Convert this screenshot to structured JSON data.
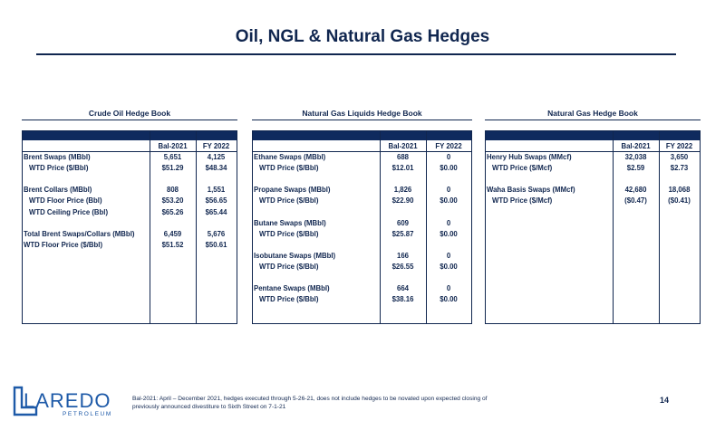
{
  "title": "Oil, NGL & Natural Gas Hedges",
  "columns": [
    "Bal-2021",
    "FY 2022"
  ],
  "books": [
    {
      "title": "Crude Oil Hedge Book",
      "rows": [
        {
          "label": "Brent Swaps (MBbl)",
          "indent": false,
          "v1": "5,651",
          "v2": "4,125",
          "slot": 0
        },
        {
          "label": "WTD Price ($/Bbl)",
          "indent": true,
          "v1": "$51.29",
          "v2": "$48.34",
          "slot": 1
        },
        {
          "label": "Brent Collars (MBbl)",
          "indent": false,
          "v1": "808",
          "v2": "1,551",
          "slot": 3
        },
        {
          "label": "WTD Floor Price (Bbl)",
          "indent": true,
          "v1": "$53.20",
          "v2": "$56.65",
          "slot": 4
        },
        {
          "label": "WTD Ceiling Price (Bbl)",
          "indent": true,
          "v1": "$65.26",
          "v2": "$65.44",
          "slot": 5
        },
        {
          "label": "Total Brent Swaps/Collars (MBbl)",
          "indent": false,
          "v1": "6,459",
          "v2": "5,676",
          "slot": 7
        },
        {
          "label": "WTD Floor Price ($/Bbl)",
          "indent": false,
          "v1": "$51.52",
          "v2": "$50.61",
          "slot": 8
        }
      ]
    },
    {
      "title": "Natural Gas Liquids Hedge Book",
      "rows": [
        {
          "label": "Ethane Swaps (MBbl)",
          "indent": false,
          "v1": "688",
          "v2": "0",
          "slot": 0
        },
        {
          "label": "WTD Price ($/Bbl)",
          "indent": true,
          "v1": "$12.01",
          "v2": "$0.00",
          "slot": 1
        },
        {
          "label": "Propane Swaps (MBbl)",
          "indent": false,
          "v1": "1,826",
          "v2": "0",
          "slot": 3
        },
        {
          "label": "WTD Price ($/Bbl)",
          "indent": true,
          "v1": "$22.90",
          "v2": "$0.00",
          "slot": 4
        },
        {
          "label": "Butane Swaps (MBbl)",
          "indent": false,
          "v1": "609",
          "v2": "0",
          "slot": 6
        },
        {
          "label": "WTD Price ($/Bbl)",
          "indent": true,
          "v1": "$25.87",
          "v2": "$0.00",
          "slot": 7
        },
        {
          "label": "Isobutane Swaps (MBbl)",
          "indent": false,
          "v1": "166",
          "v2": "0",
          "slot": 9
        },
        {
          "label": "WTD Price ($/Bbl)",
          "indent": true,
          "v1": "$26.55",
          "v2": "$0.00",
          "slot": 10
        },
        {
          "label": "Pentane Swaps (MBbl)",
          "indent": false,
          "v1": "664",
          "v2": "0",
          "slot": 12
        },
        {
          "label": "WTD Price ($/Bbl)",
          "indent": true,
          "v1": "$38.16",
          "v2": "$0.00",
          "slot": 13
        }
      ]
    },
    {
      "title": "Natural Gas Hedge Book",
      "rows": [
        {
          "label": "Henry Hub Swaps (MMcf)",
          "indent": false,
          "v1": "32,038",
          "v2": "3,650",
          "slot": 0
        },
        {
          "label": "WTD Price ($/Mcf)",
          "indent": true,
          "v1": "$2.59",
          "v2": "$2.73",
          "slot": 1
        },
        {
          "label": "Waha Basis Swaps (MMcf)",
          "indent": false,
          "v1": "42,680",
          "v2": "18,068",
          "slot": 3
        },
        {
          "label": "WTD Price ($/Mcf)",
          "indent": true,
          "v1": "($0.47)",
          "v2": "($0.41)",
          "slot": 4
        }
      ]
    }
  ],
  "logo": {
    "name": "LAREDO",
    "sub": "PETROLEUM",
    "color": "#1e5aa8"
  },
  "footnote": "Bal-2021: April – December 2021, hedges executed through 5-26-21, does not include hedges to be novated upon expected closing of previously announced divestiture to Sixth Street on 7-1-21",
  "page_number": "14"
}
